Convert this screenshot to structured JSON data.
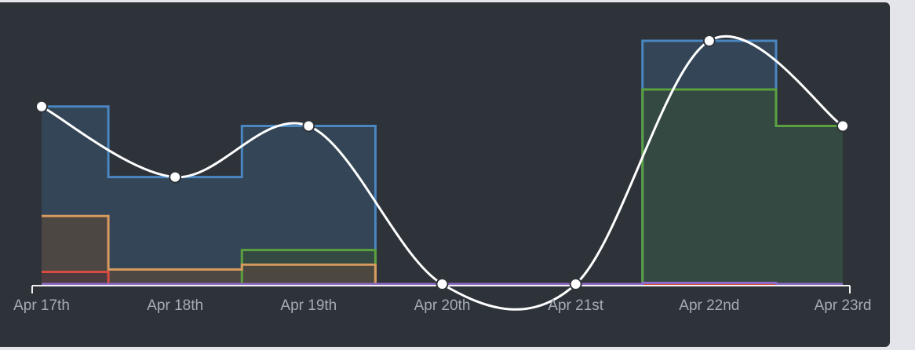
{
  "colors": {
    "background": "#2e3239",
    "page": "#e3e5ea",
    "axis": "#f2f2f2",
    "tick_label": "#a6acb4",
    "line": "#ffffff"
  },
  "chart_data": {
    "type": "area",
    "subtype": "stepped-area with smooth line overlay",
    "categories": [
      "Apr 17th",
      "Apr 18th",
      "Apr 19th",
      "Apr 20th",
      "Apr 21st",
      "Apr 22nd",
      "Apr 23rd"
    ],
    "title": "",
    "xlabel": "",
    "ylabel": "",
    "ylim": [
      0,
      1
    ],
    "y_axis_visible": false,
    "grid": false,
    "legend": "none",
    "series": [
      {
        "color": "#4a86c0",
        "fill": "#34495c",
        "step": "after",
        "values": [
          0.73,
          0.44,
          0.65,
          0.0,
          0.0,
          1.0,
          0.65
        ]
      },
      {
        "color": "#5aa03f",
        "fill": "#344a3d",
        "step": "after",
        "values": [
          0.0,
          0.0,
          0.14,
          0.0,
          0.0,
          0.8,
          0.65
        ]
      },
      {
        "color": "#d89a5e",
        "fill": "#52483f",
        "step": "after",
        "values": [
          0.28,
          0.06,
          0.08,
          0.0,
          0.0,
          0.0,
          0.0
        ]
      },
      {
        "color": "#d94a3f",
        "fill": "#4e3b3e",
        "step": "after",
        "values": [
          0.05,
          0.0,
          0.0,
          0.0,
          0.0,
          0.0,
          0.0
        ]
      },
      {
        "color": "#8d6bc6",
        "fill": "#3b3d55",
        "step": "after",
        "values": [
          0.0,
          0.0,
          0.0,
          0.0,
          0.0,
          0.005,
          0.0
        ]
      }
    ],
    "line": {
      "color": "#ffffff",
      "smooth": true,
      "markers": true,
      "values": [
        0.73,
        0.44,
        0.65,
        0.0,
        0.0,
        1.0,
        0.65
      ]
    }
  }
}
